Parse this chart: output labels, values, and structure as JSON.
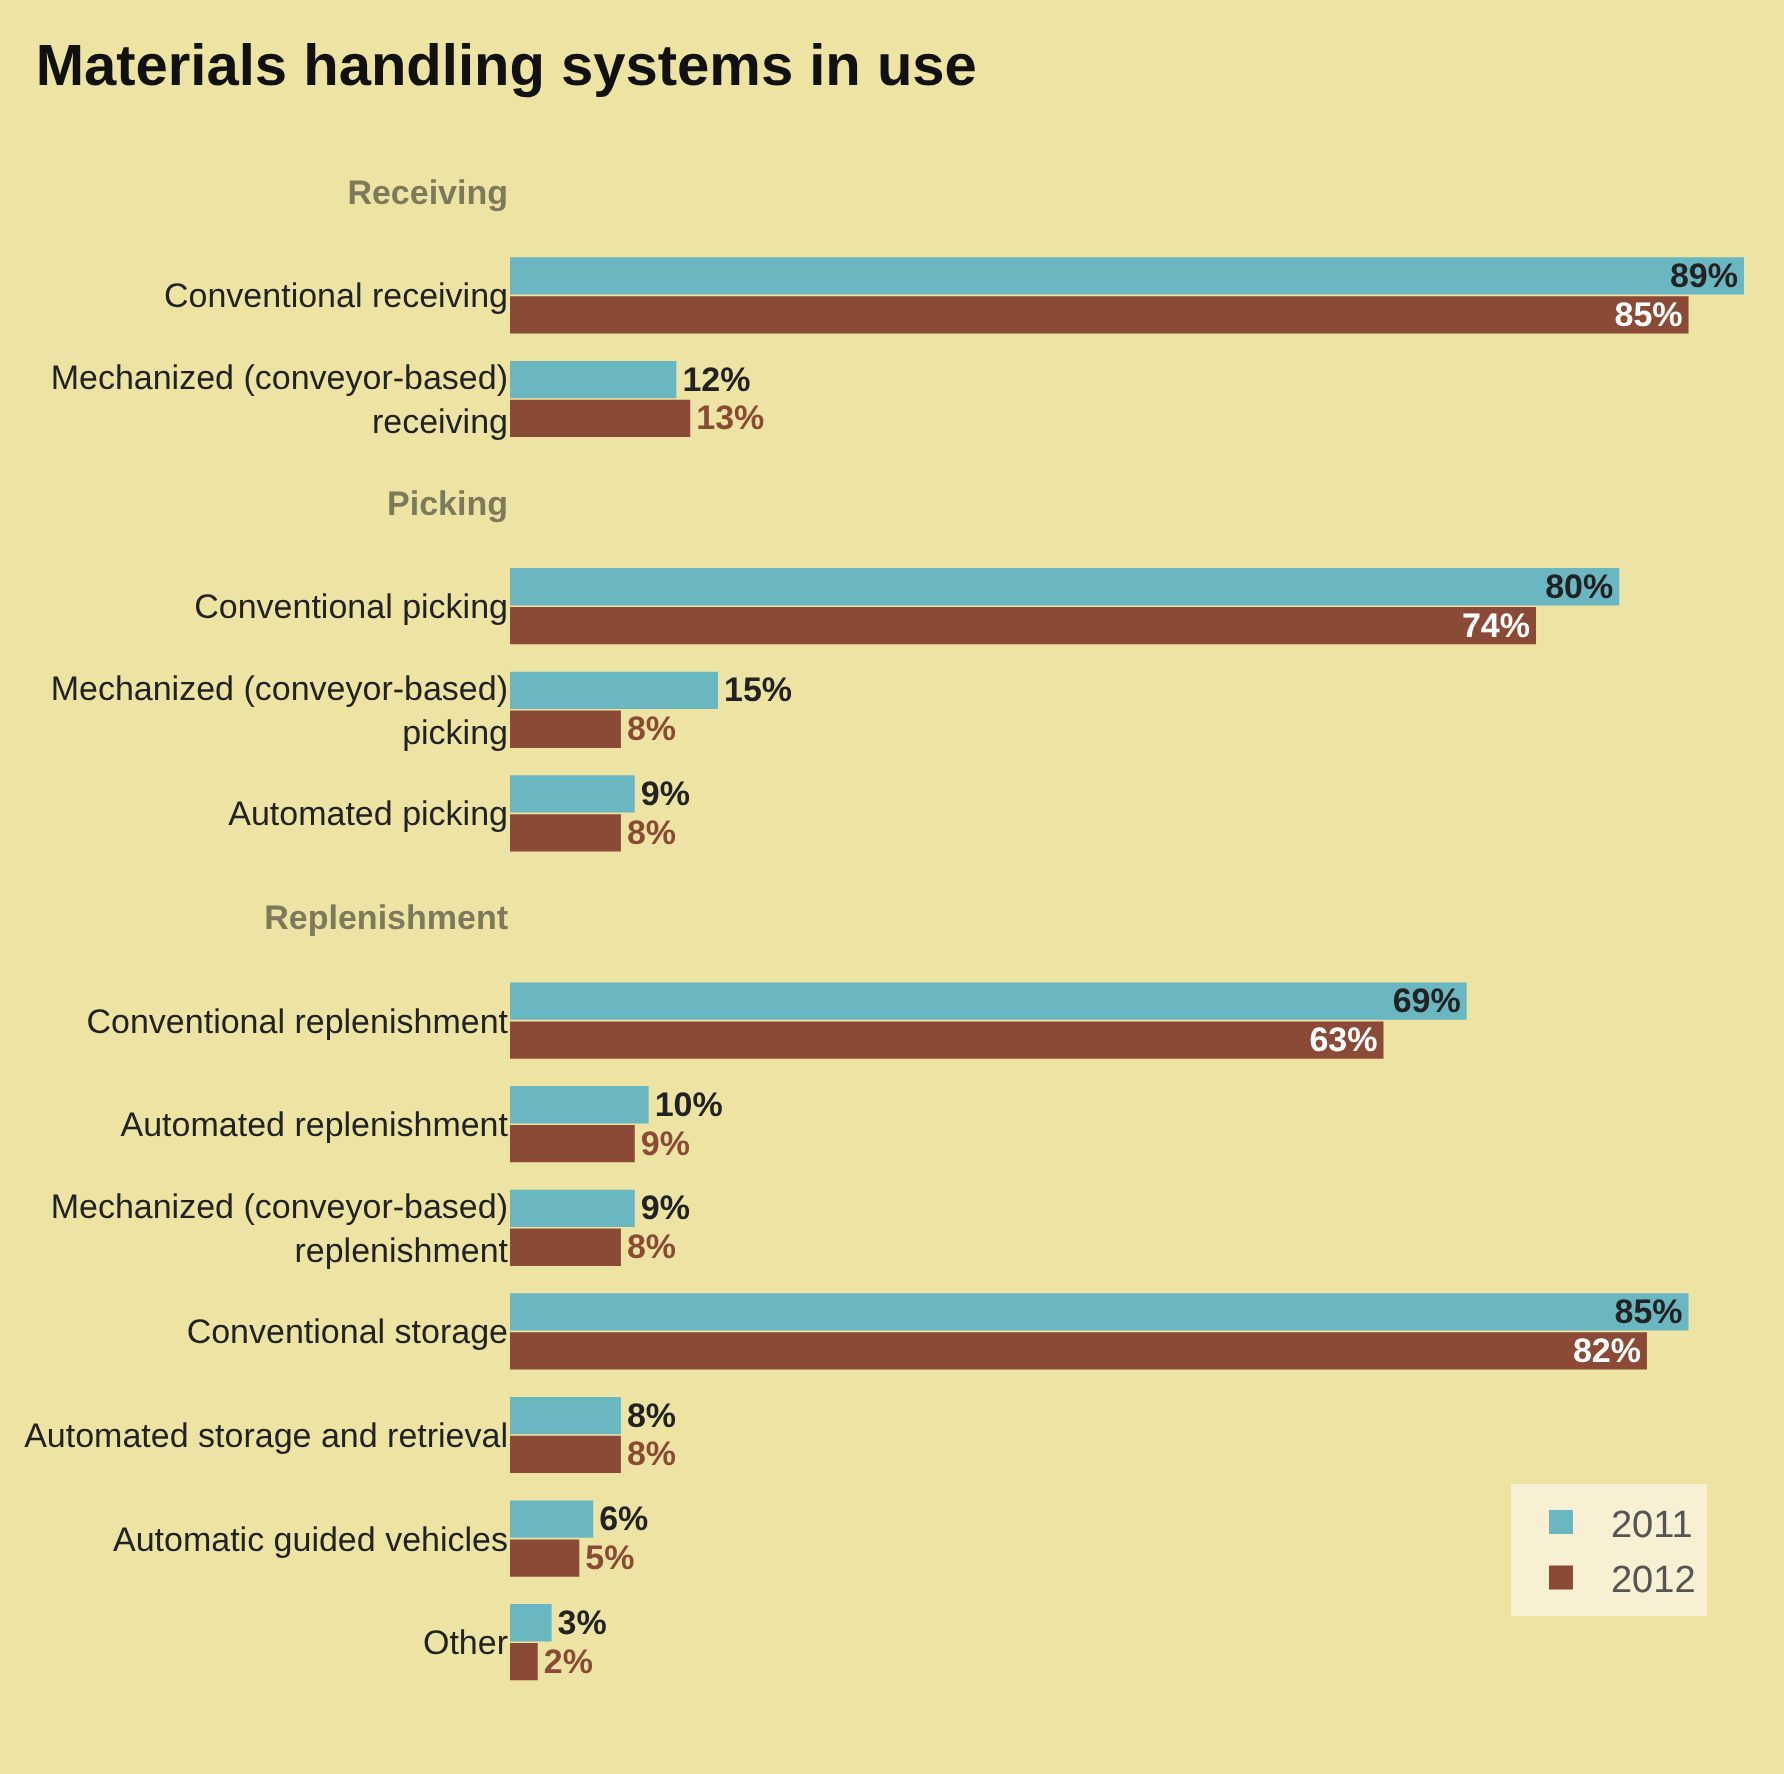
{
  "chart_data": {
    "type": "bar",
    "orientation": "horizontal",
    "title": "Materials handling systems in use",
    "categories": [
      "Receiving",
      "Conventional receiving",
      "Mechanized (conveyor-based)\nreceiving",
      "Picking",
      "Conventional picking",
      "Mechanized (conveyor-based)\npicking",
      "Automated picking",
      "Replenishment",
      "Conventional replenishment",
      "Automated replenishment",
      "Mechanized (conveyor-based)\nreplenishment",
      "Conventional storage",
      "Automated storage and retrieval",
      "Automatic guided vehicles",
      "Other"
    ],
    "series": [
      {
        "name": "2011",
        "color": "#6ab7c1",
        "values": [
          null,
          89,
          12,
          null,
          80,
          15,
          9,
          null,
          69,
          10,
          9,
          85,
          8,
          6,
          3
        ],
        "value_labels": [
          null,
          "89%",
          "12%",
          null,
          "80%",
          "15%",
          "9%",
          null,
          "69%",
          "10%",
          "9%",
          "85%",
          "8%",
          "6%",
          "3%"
        ]
      },
      {
        "name": "2012",
        "color": "#8b4a36",
        "values": [
          null,
          85,
          13,
          null,
          74,
          8,
          8,
          null,
          63,
          9,
          8,
          82,
          8,
          5,
          2
        ],
        "value_labels": [
          null,
          "85%",
          "13%",
          null,
          "74%",
          "8%",
          "8%",
          null,
          "63%",
          "9%",
          "8%",
          "82%",
          "8%",
          "5%",
          "2%"
        ]
      }
    ],
    "legend": "bottom right"
  }
}
